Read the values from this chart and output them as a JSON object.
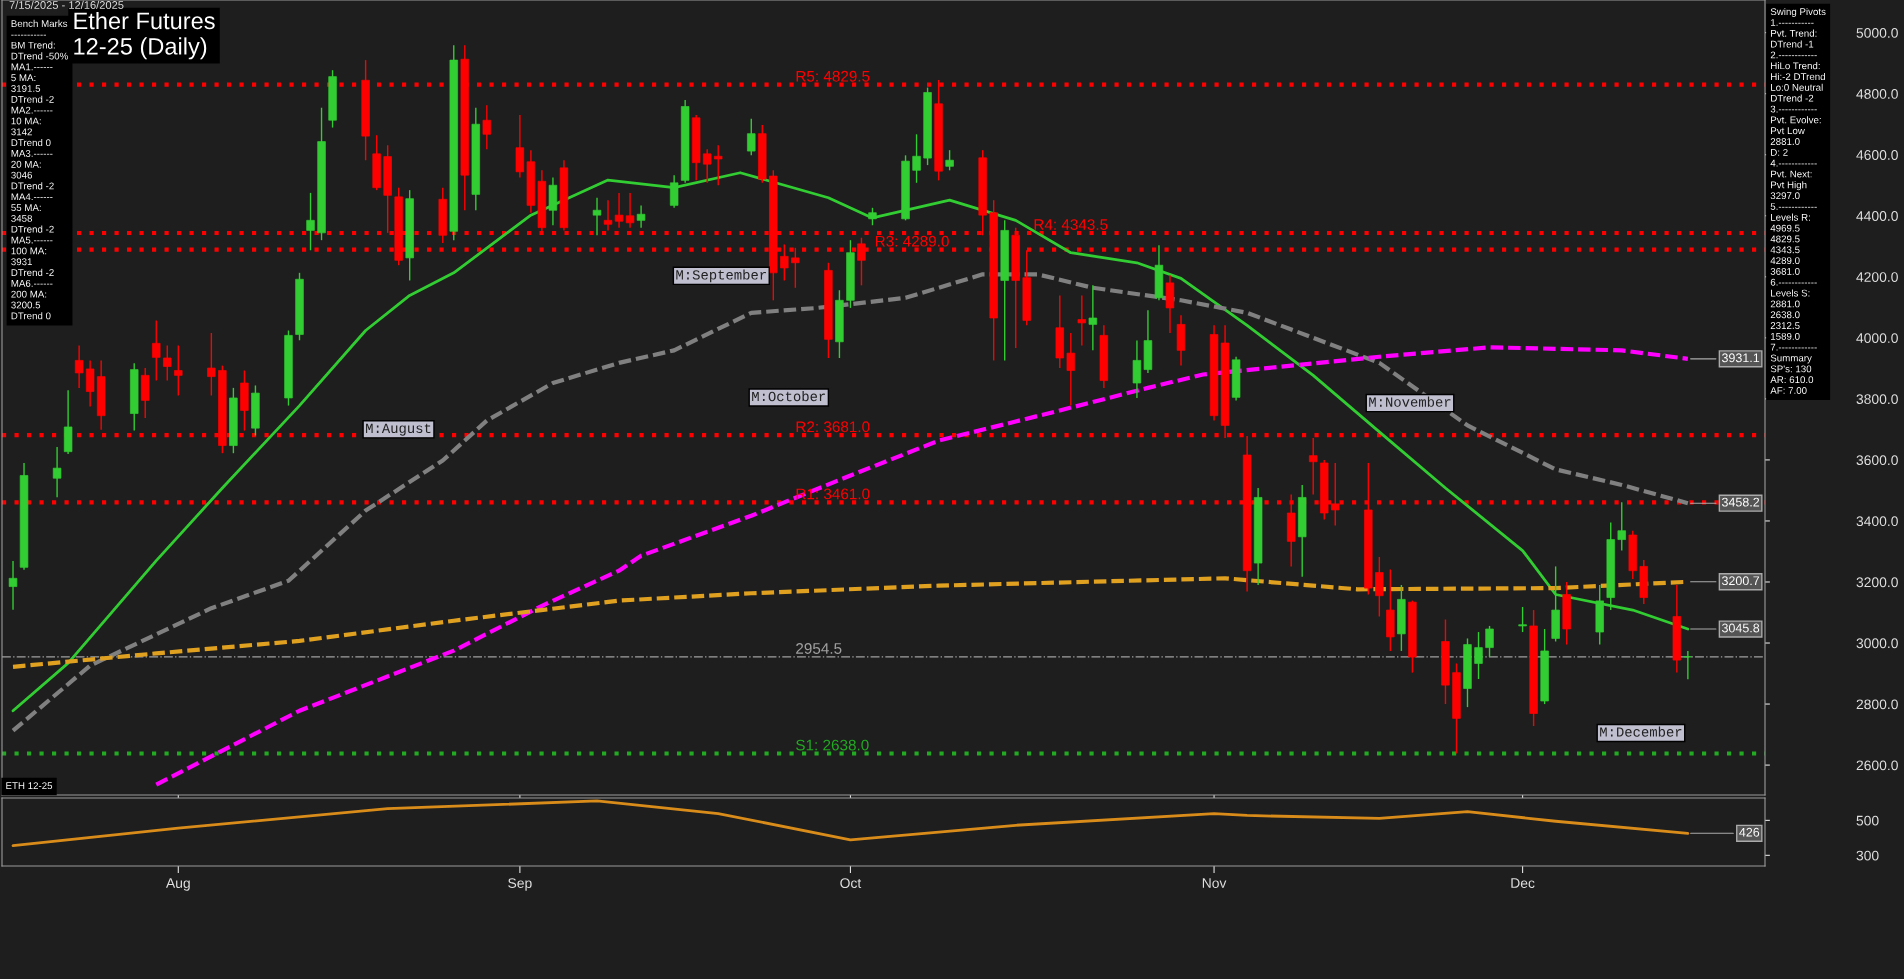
{
  "chart_data": [
    {
      "type": "candlestick",
      "title": "Ether Futures\n12-25 (Daily)",
      "subtitle": "7/15/2025 - 12/16/2025",
      "x": [
        "2025-07-17",
        "2025-07-18",
        "2025-07-21",
        "2025-07-22",
        "2025-07-23",
        "2025-07-24",
        "2025-07-25",
        "2025-07-28",
        "2025-07-29",
        "2025-07-30",
        "2025-07-31",
        "2025-08-01",
        "2025-08-04",
        "2025-08-05",
        "2025-08-06",
        "2025-08-07",
        "2025-08-08",
        "2025-08-11",
        "2025-08-12",
        "2025-08-13",
        "2025-08-14",
        "2025-08-15",
        "2025-08-18",
        "2025-08-19",
        "2025-08-20",
        "2025-08-21",
        "2025-08-22",
        "2025-08-25",
        "2025-08-26",
        "2025-08-27",
        "2025-08-28",
        "2025-08-29",
        "2025-09-01",
        "2025-09-02",
        "2025-09-03",
        "2025-09-04",
        "2025-09-05",
        "2025-09-08",
        "2025-09-09",
        "2025-09-10",
        "2025-09-11",
        "2025-09-12",
        "2025-09-15",
        "2025-09-16",
        "2025-09-17",
        "2025-09-18",
        "2025-09-19",
        "2025-09-22",
        "2025-09-23",
        "2025-09-24",
        "2025-09-25",
        "2025-09-26",
        "2025-09-29",
        "2025-09-30",
        "2025-10-01",
        "2025-10-02",
        "2025-10-03",
        "2025-10-06",
        "2025-10-07",
        "2025-10-08",
        "2025-10-09",
        "2025-10-10",
        "2025-10-13",
        "2025-10-14",
        "2025-10-15",
        "2025-10-16",
        "2025-10-17",
        "2025-10-20",
        "2025-10-21",
        "2025-10-22",
        "2025-10-23",
        "2025-10-24",
        "2025-10-27",
        "2025-10-28",
        "2025-10-29",
        "2025-10-30",
        "2025-10-31",
        "2025-11-03",
        "2025-11-04",
        "2025-11-05",
        "2025-11-06",
        "2025-11-07",
        "2025-11-10",
        "2025-11-11",
        "2025-11-12",
        "2025-11-13",
        "2025-11-14",
        "2025-11-17",
        "2025-11-18",
        "2025-11-19",
        "2025-11-20",
        "2025-11-21",
        "2025-11-24",
        "2025-11-25",
        "2025-11-26",
        "2025-11-27",
        "2025-11-28",
        "2025-12-01",
        "2025-12-02",
        "2025-12-03",
        "2025-12-04",
        "2025-12-05",
        "2025-12-08",
        "2025-12-09",
        "2025-12-10",
        "2025-12-11",
        "2025-12-12",
        "2025-12-15",
        "2025-12-16"
      ],
      "ohlc": [
        [
          3185,
          3269,
          3109,
          3212
        ],
        [
          3248,
          3590,
          3240,
          3549
        ],
        [
          3540,
          3642,
          3478,
          3573
        ],
        [
          3627,
          3828,
          3619,
          3708
        ],
        [
          3926,
          3975,
          3836,
          3885
        ],
        [
          3898,
          3926,
          3775,
          3824
        ],
        [
          3873,
          3926,
          3699,
          3745
        ],
        [
          3752,
          3917,
          3696,
          3896
        ],
        [
          3877,
          3901,
          3737,
          3795
        ],
        [
          3982,
          4057,
          3860,
          3936
        ],
        [
          3934,
          3975,
          3860,
          3906
        ],
        [
          3893,
          3975,
          3811,
          3877
        ],
        [
          3901,
          4016,
          3811,
          3873
        ],
        [
          3893,
          3909,
          3622,
          3647
        ],
        [
          3647,
          3836,
          3622,
          3803
        ],
        [
          3852,
          3893,
          3696,
          3762
        ],
        [
          3704,
          3844,
          3680,
          3819
        ],
        [
          3803,
          4024,
          3778,
          4008
        ],
        [
          4011,
          4213,
          3992,
          4192
        ],
        [
          4352,
          4475,
          4287,
          4385
        ],
        [
          4344,
          4754,
          4320,
          4643
        ],
        [
          4713,
          4877,
          4689,
          4856
        ],
        [
          4844,
          4910,
          4582,
          4661
        ],
        [
          4603,
          4664,
          4484,
          4492
        ],
        [
          4594,
          4631,
          4344,
          4467
        ],
        [
          4462,
          4492,
          4238,
          4254
        ],
        [
          4262,
          4484,
          4188,
          4456
        ],
        [
          4454,
          4492,
          4311,
          4336
        ],
        [
          4349,
          4959,
          4320,
          4910
        ],
        [
          4913,
          4959,
          4418,
          4533
        ],
        [
          4470,
          4754,
          4418,
          4700
        ],
        [
          4713,
          4762,
          4618,
          4667
        ],
        [
          4623,
          4730,
          4525,
          4544
        ],
        [
          4577,
          4615,
          4410,
          4434
        ],
        [
          4513,
          4549,
          4344,
          4361
        ],
        [
          4418,
          4525,
          4369,
          4500
        ],
        [
          4557,
          4582,
          4352,
          4361
        ],
        [
          4402,
          4459,
          4336,
          4418
        ],
        [
          4385,
          4451,
          4352,
          4372
        ],
        [
          4402,
          4475,
          4361,
          4382
        ],
        [
          4400,
          4475,
          4361,
          4377
        ],
        [
          4385,
          4434,
          4361,
          4405
        ],
        [
          4434,
          4533,
          4426,
          4508
        ],
        [
          4516,
          4779,
          4508,
          4758
        ],
        [
          4721,
          4730,
          4516,
          4574
        ],
        [
          4603,
          4618,
          4508,
          4569
        ],
        [
          4595,
          4631,
          4500,
          4586
        ],
        [
          4612,
          4718,
          4598,
          4669
        ],
        [
          4669,
          4697,
          4508,
          4520
        ],
        [
          4530,
          4549,
          4123,
          4213
        ],
        [
          4267,
          4306,
          4188,
          4229
        ],
        [
          4262,
          4295,
          4164,
          4246
        ],
        [
          4221,
          4246,
          3934,
          3995
        ],
        [
          3987,
          4156,
          3934,
          4123
        ],
        [
          4123,
          4320,
          4098,
          4279
        ],
        [
          4308,
          4328,
          4172,
          4254
        ],
        [
          4390,
          4426,
          4369,
          4410
        ],
        [
          4390,
          4598,
          4385,
          4579
        ],
        [
          4549,
          4667,
          4508,
          4595
        ],
        [
          4589,
          4820,
          4566,
          4804
        ],
        [
          4767,
          4845,
          4516,
          4546
        ],
        [
          4562,
          4615,
          4549,
          4582
        ],
        [
          4590,
          4615,
          4336,
          4402
        ],
        [
          4410,
          4451,
          3926,
          4065
        ],
        [
          4188,
          4385,
          3926,
          4352
        ],
        [
          4336,
          4361,
          3967,
          4188
        ],
        [
          4197,
          4287,
          4041,
          4057
        ],
        [
          4033,
          4139,
          3901,
          3934
        ],
        [
          3950,
          4016,
          3778,
          3893
        ],
        [
          4060,
          4139,
          3975,
          4049
        ],
        [
          4044,
          4172,
          3959,
          4065
        ],
        [
          4008,
          4041,
          3836,
          3860
        ],
        [
          3852,
          3991,
          3803,
          3926
        ],
        [
          3896,
          4090,
          3885,
          3991
        ],
        [
          4131,
          4303,
          4123,
          4238
        ],
        [
          4180,
          4205,
          4016,
          4098
        ],
        [
          4044,
          4074,
          3909,
          3959
        ],
        [
          4011,
          4041,
          3729,
          3745
        ],
        [
          3983,
          4041,
          3672,
          3713
        ],
        [
          3805,
          3938,
          3795,
          3928
        ],
        [
          3616,
          3678,
          3169,
          3237
        ],
        [
          3262,
          3508,
          3190,
          3477
        ],
        [
          3426,
          3487,
          3251,
          3333
        ],
        [
          3348,
          3518,
          3217,
          3477
        ],
        [
          3614,
          3672,
          3487,
          3594
        ],
        [
          3590,
          3600,
          3405,
          3426
        ],
        [
          3456,
          3590,
          3385,
          3436
        ],
        [
          3436,
          3590,
          3159,
          3180
        ],
        [
          3231,
          3282,
          3087,
          3155
        ],
        [
          3108,
          3241,
          2974,
          3020
        ],
        [
          3030,
          3190,
          2974,
          3143
        ],
        [
          3134,
          3139,
          2903,
          2954
        ],
        [
          3005,
          3077,
          2800,
          2862
        ],
        [
          2903,
          2933,
          2638,
          2753
        ],
        [
          2851,
          3015,
          2790,
          2995
        ],
        [
          2933,
          3036,
          2882,
          2985
        ],
        [
          2985,
          3056,
          2954,
          3046
        ],
        [
          3056,
          3118,
          3036,
          3060
        ],
        [
          3056,
          3108,
          2728,
          2769
        ],
        [
          2810,
          3046,
          2800,
          2974
        ],
        [
          3015,
          3251,
          3005,
          3108
        ],
        [
          3159,
          3200,
          2995,
          3046
        ],
        [
          3036,
          3190,
          2995,
          3138
        ],
        [
          3149,
          3395,
          3108,
          3339
        ],
        [
          3339,
          3461,
          3303,
          3368
        ],
        [
          3354,
          3368,
          3210,
          3237
        ],
        [
          3251,
          3272,
          3128,
          3149
        ],
        [
          3087,
          3190,
          2903,
          2944
        ],
        [
          2954,
          2974,
          2881,
          2954.5
        ]
      ],
      "colors": [
        "#32cd32",
        "#32cd32",
        "#32cd32",
        "#32cd32",
        "#ff0000",
        "#ff0000",
        "#ff0000",
        "#32cd32",
        "#ff0000",
        "#ff0000",
        "#ff0000",
        "#ff0000",
        "#ff0000",
        "#ff0000",
        "#32cd32",
        "#ff0000",
        "#32cd32",
        "#32cd32",
        "#32cd32",
        "#32cd32",
        "#32cd32",
        "#32cd32",
        "#ff0000",
        "#ff0000",
        "#ff0000",
        "#ff0000",
        "#32cd32",
        "#ff0000",
        "#32cd32",
        "#ff0000",
        "#32cd32",
        "#ff0000",
        "#ff0000",
        "#ff0000",
        "#ff0000",
        "#32cd32",
        "#ff0000",
        "#32cd32",
        "#ff0000",
        "#ff0000",
        "#ff0000",
        "#32cd32",
        "#32cd32",
        "#32cd32",
        "#ff0000",
        "#ff0000",
        "#ff0000",
        "#32cd32",
        "#ff0000",
        "#ff0000",
        "#ff0000",
        "#ff0000",
        "#ff0000",
        "#32cd32",
        "#32cd32",
        "#ff0000",
        "#32cd32",
        "#32cd32",
        "#32cd32",
        "#32cd32",
        "#ff0000",
        "#32cd32",
        "#ff0000",
        "#ff0000",
        "#32cd32",
        "#ff0000",
        "#ff0000",
        "#ff0000",
        "#ff0000",
        "#ff0000",
        "#32cd32",
        "#ff0000",
        "#32cd32",
        "#32cd32",
        "#32cd32",
        "#ff0000",
        "#ff0000",
        "#ff0000",
        "#ff0000",
        "#32cd32",
        "#ff0000",
        "#32cd32",
        "#ff0000",
        "#32cd32",
        "#ff0000",
        "#ff0000",
        "#ff0000",
        "#ff0000",
        "#ff0000",
        "#ff0000",
        "#32cd32",
        "#ff0000",
        "#ff0000",
        "#ff0000",
        "#32cd32",
        "#32cd32",
        "#32cd32",
        "#32cd32",
        "#ff0000",
        "#32cd32",
        "#32cd32",
        "#ff0000",
        "#32cd32",
        "#32cd32",
        "#32cd32",
        "#ff0000",
        "#ff0000",
        "#ff0000",
        "#32cd32"
      ],
      "series": [
        {
          "type": "line",
          "color": "#32cd32",
          "line_style": "solid",
          "x": [
            "2025-07-17",
            "2025-07-22",
            "2025-07-30",
            "2025-08-05",
            "2025-08-12",
            "2025-08-18",
            "2025-08-22",
            "2025-08-26",
            "2025-09-02",
            "2025-09-09",
            "2025-09-15",
            "2025-09-21",
            "2025-09-29",
            "2025-10-03",
            "2025-10-10",
            "2025-10-16",
            "2025-10-21",
            "2025-10-27",
            "2025-10-31",
            "2025-11-06",
            "2025-11-12",
            "2025-11-18",
            "2025-11-24",
            "2025-12-01",
            "2025-12-04",
            "2025-12-11",
            "2025-12-16"
          ],
          "values": [
            2778,
            2934,
            3270,
            3508,
            3778,
            4024,
            4139,
            4213,
            4402,
            4517,
            4492,
            4541,
            4459,
            4393,
            4451,
            4385,
            4279,
            4246,
            4195,
            4041,
            3877,
            3692,
            3508,
            3303,
            3159,
            3108,
            3045.8
          ]
        },
        {
          "type": "line",
          "color": "#808080",
          "line_style": "dashed",
          "x": [
            "2025-07-17",
            "2025-07-24",
            "2025-08-04",
            "2025-08-11",
            "2025-08-18",
            "2025-08-25",
            "2025-08-29",
            "2025-09-04",
            "2025-09-10",
            "2025-09-15",
            "2025-09-22",
            "2025-09-28",
            "2025-10-06",
            "2025-10-13",
            "2025-10-18",
            "2025-10-23",
            "2025-10-31",
            "2025-11-06",
            "2025-11-18",
            "2025-11-26",
            "2025-12-04",
            "2025-12-10",
            "2025-12-16"
          ],
          "values": [
            2713,
            2926,
            3114,
            3204,
            3434,
            3598,
            3729,
            3852,
            3918,
            3959,
            4082,
            4098,
            4131,
            4208,
            4208,
            4164,
            4123,
            4082,
            3918,
            3713,
            3569,
            3518,
            3458.2
          ]
        },
        {
          "type": "line",
          "color": "#ff00ff",
          "line_style": "dashed",
          "x": [
            "2025-07-30",
            "2025-08-12",
            "2025-08-26",
            "2025-09-03",
            "2025-09-10",
            "2025-09-12",
            "2025-09-22",
            "2025-10-01",
            "2025-10-09",
            "2025-10-20",
            "2025-10-28",
            "2025-11-02",
            "2025-11-18",
            "2025-11-28",
            "2025-12-10",
            "2025-12-16"
          ],
          "values": [
            2536,
            2778,
            2975,
            3122,
            3237,
            3286,
            3417,
            3549,
            3663,
            3762,
            3836,
            3880,
            3938,
            3969,
            3959,
            3931.1
          ]
        },
        {
          "type": "line",
          "color": "#e0a020",
          "line_style": "dashed",
          "x": [
            "2025-07-17",
            "2025-07-30",
            "2025-08-12",
            "2025-08-26",
            "2025-09-10",
            "2025-09-22",
            "2025-10-09",
            "2025-10-23",
            "2025-11-04",
            "2025-11-16",
            "2025-12-04",
            "2025-12-16"
          ],
          "values": [
            2922,
            2966,
            3007,
            3073,
            3139,
            3163,
            3188,
            3201,
            3212,
            3176,
            3180,
            3200.7
          ]
        }
      ],
      "ref_lines": [
        {
          "axis": "y",
          "value": 4829.5,
          "label": "R5: 4829.5",
          "color": "#ff0000",
          "line_style": "dotted"
        },
        {
          "axis": "y",
          "value": 4343.5,
          "label": "R4: 4343.5",
          "color": "#ff0000",
          "line_style": "dotted"
        },
        {
          "axis": "y",
          "value": 4289.0,
          "label": "R3: 4289.0",
          "color": "#ff0000",
          "line_style": "dotted"
        },
        {
          "axis": "y",
          "value": 3681.0,
          "label": "R2: 3681.0",
          "color": "#ff0000",
          "line_style": "dotted"
        },
        {
          "axis": "y",
          "value": 3461.0,
          "label": "R1: 3461.0",
          "color": "#ff0000",
          "line_style": "dotted"
        },
        {
          "axis": "y",
          "value": 2638.0,
          "label": "S1: 2638.0",
          "color": "#22aa22",
          "line_style": "dotted"
        },
        {
          "axis": "y",
          "value": 2954.5,
          "label": "2954.5",
          "color": "#a0a0a0",
          "line_style": "dashdot"
        }
      ],
      "annotations": [
        "Bench Marks\n-----------\nBM Trend:\nDTrend -50%\nMA1.------\n5 MA:\n3191.5\nDTrend -2\nMA2.------\n10 MA:\n3142\nDTrend 0\nMA3.------\n20 MA:\n3046\nDTrend -2\nMA4.------\n55 MA:\n3458\nDTrend -2\nMA5.------\n100 MA:\n3931\nDTrend -2\nMA6.------\n200 MA:\n3200.5\nDTrend 0",
        "Swing Pivots\n1.-----------\nPvt. Trend:\nDTrend -1\n2.------------\nHiLo Trend:\nHi:-2 DTrend\nLo:0 Neutral\nDTrend -2\n3.------------\nPvt. Evolve:\nPvt Low\n2881.0\nD: 2\n4.------------\nPvt. Next:\nPvt High\n3297.0\n5.------------\nLevels R:\n4969.5\n4829.5\n4343.5\n4289.0\n3681.0\n6.------------\nLevels S:\n2881.0\n2638.0\n2312.5\n1589.0\n7.------------\nSummary\nSP's: 130\nAR: 610.0\nAF: 7.00",
        "ETH 12-25",
        "M:August",
        "M:September",
        "M:October",
        "M:November",
        "M:December",
        {
          "text": "3931.1",
          "x": "2025-12-16",
          "y": 3931.1
        },
        {
          "text": "3458.2",
          "x": "2025-12-16",
          "y": 3458.2
        },
        {
          "text": "3200.7",
          "x": "2025-12-16",
          "y": 3200.7
        },
        {
          "text": "3045.8",
          "x": "2025-12-16",
          "y": 3045.8
        }
      ],
      "xlim": [
        "2025-07-16",
        "2025-12-23"
      ],
      "xticks": [
        {
          "value": "2025-08-01",
          "label": null
        },
        {
          "value": "2025-09-01",
          "label": null
        },
        {
          "value": "2025-10-01",
          "label": null
        },
        {
          "value": "2025-11-03",
          "label": null
        },
        {
          "value": "2025-12-01",
          "label": null
        }
      ],
      "ylim": [
        2502,
        5107
      ],
      "yticks": [
        {
          "value": 2600,
          "label": "2600.0"
        },
        {
          "value": 2800,
          "label": "2800.0"
        },
        {
          "value": 3000,
          "label": "3000.0"
        },
        {
          "value": 3200,
          "label": "3200.0"
        },
        {
          "value": 3400,
          "label": "3400.0"
        },
        {
          "value": 3600,
          "label": "3600.0"
        },
        {
          "value": 3800,
          "label": "3800.0"
        },
        {
          "value": 4000,
          "label": "4000.0"
        },
        {
          "value": 4200,
          "label": "4200.0"
        },
        {
          "value": 4400,
          "label": "4400.0"
        },
        {
          "value": 4600,
          "label": "4600.0"
        },
        {
          "value": 4800,
          "label": "4800.0"
        },
        {
          "value": 5000,
          "label": "5000.0"
        }
      ],
      "tick_labels": "y",
      "grid": false,
      "legend": false
    },
    {
      "type": "line",
      "series": [
        {
          "color": "#d98c1a",
          "x": [
            "2025-07-17",
            "2025-08-01",
            "2025-08-20",
            "2025-09-08",
            "2025-09-19",
            "2025-10-01",
            "2025-10-16",
            "2025-11-03",
            "2025-11-06",
            "2025-11-18",
            "2025-11-26",
            "2025-12-04",
            "2025-12-16"
          ],
          "values": [
            355,
            456,
            567,
            611,
            539,
            389,
            472,
            539,
            528,
            511,
            550,
            495,
            426
          ]
        }
      ],
      "annotations": [
        {
          "text": "426",
          "x": "2025-12-16",
          "y": 426
        }
      ],
      "xlim": [
        "2025-07-16",
        "2025-12-23"
      ],
      "xticks": [
        {
          "value": "2025-08-01",
          "label": "Aug"
        },
        {
          "value": "2025-09-01",
          "label": "Sep"
        },
        {
          "value": "2025-10-01",
          "label": "Oct"
        },
        {
          "value": "2025-11-03",
          "label": "Nov"
        },
        {
          "value": "2025-12-01",
          "label": "Dec"
        }
      ],
      "ylim": [
        239,
        628
      ],
      "yticks": [
        300,
        500
      ],
      "grid": false,
      "legend": false
    }
  ]
}
